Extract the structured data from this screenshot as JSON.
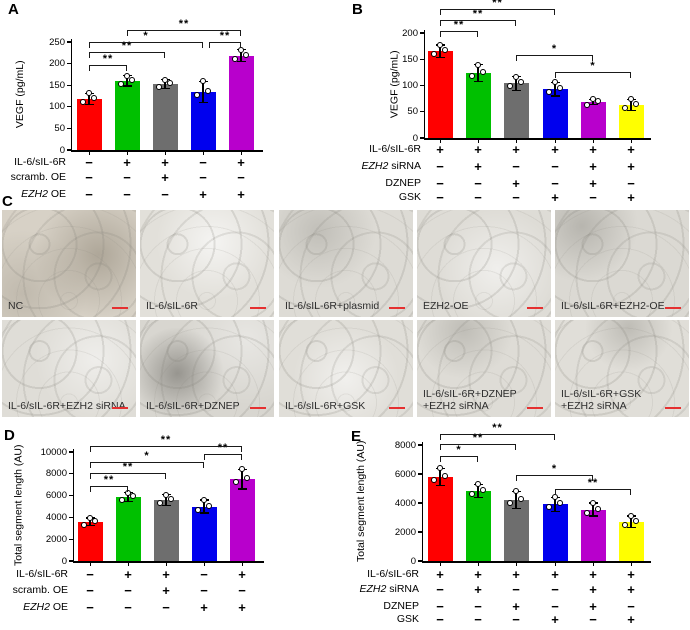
{
  "panels": {
    "A": {
      "letter": "A"
    },
    "B": {
      "letter": "B"
    },
    "C": {
      "letter": "C"
    },
    "D": {
      "letter": "D"
    },
    "E": {
      "letter": "E"
    }
  },
  "panel_c": {
    "images": [
      {
        "label": "NC"
      },
      {
        "label": "IL-6/sIL-6R"
      },
      {
        "label": "IL-6/sIL-6R+plasmid"
      },
      {
        "label": "EZH2-OE"
      },
      {
        "label": "IL-6/sIL-6R+EZH2-OE"
      },
      {
        "label": "IL-6/sIL-6R+EZH2 siRNA"
      },
      {
        "label": "IL-6/sIL-6R+DZNEP"
      },
      {
        "label": "IL-6/sIL-6R+GSK"
      },
      {
        "label": "IL-6/sIL-6R+DZNEP\n+EZH2 siRNA"
      },
      {
        "label": "IL-6/sIL-6R+GSK\n+EZH2 siRNA"
      }
    ],
    "scale_bar_color": "#e53030"
  },
  "chart_data": [
    {
      "id": "A",
      "type": "bar",
      "title": "",
      "ylabel": "VEGF (pg/mL)",
      "ylim": [
        0,
        250
      ],
      "yticks": [
        0,
        50,
        100,
        150,
        200,
        250
      ],
      "values": [
        118,
        160,
        153,
        134,
        218
      ],
      "errors": [
        13,
        12,
        10,
        25,
        14
      ],
      "colors": [
        "#ff0000",
        "#00c000",
        "#6e6e6e",
        "#0000ee",
        "#b800cc"
      ],
      "points_per_bar": 3,
      "condition_rows": [
        {
          "label": "IL-6/sIL-6R",
          "italic_prefix": "",
          "values": [
            "−",
            "+",
            "+",
            "−",
            "+"
          ]
        },
        {
          "label": "scramb. OE",
          "italic_prefix": "",
          "values": [
            "−",
            "−",
            "+",
            "−",
            "−"
          ]
        },
        {
          "label": "EZH2 OE",
          "italic_prefix": "EZH2",
          "values": [
            "−",
            "−",
            "−",
            "+",
            "+"
          ]
        }
      ],
      "significance": [
        {
          "pair": [
            0,
            1
          ],
          "label": "**"
        },
        {
          "pair": [
            0,
            2
          ],
          "label": "**"
        },
        {
          "pair": [
            0,
            3
          ],
          "label": "*"
        },
        {
          "pair": [
            3,
            4
          ],
          "label": "**"
        },
        {
          "pair": [
            1,
            4
          ],
          "label": "**"
        }
      ]
    },
    {
      "id": "B",
      "type": "bar",
      "title": "",
      "ylabel": "VEGF (pg/mL)",
      "ylim": [
        0,
        200
      ],
      "yticks": [
        0,
        50,
        100,
        150,
        200
      ],
      "values": [
        165,
        124,
        104,
        93,
        69,
        63
      ],
      "errors": [
        12,
        16,
        13,
        13,
        5,
        11
      ],
      "colors": [
        "#ff0000",
        "#00c000",
        "#6e6e6e",
        "#0000ee",
        "#b800cc",
        "#ffff00"
      ],
      "points_per_bar": 3,
      "condition_rows": [
        {
          "label": "IL-6/sIL-6R",
          "italic_prefix": "",
          "values": [
            "+",
            "+",
            "+",
            "+",
            "+",
            "+"
          ]
        },
        {
          "label": "EZH2 siRNA",
          "italic_prefix": "EZH2",
          "values": [
            "−",
            "+",
            "−",
            "−",
            "+",
            "+"
          ]
        },
        {
          "label": "DZNEP",
          "italic_prefix": "",
          "values": [
            "−",
            "−",
            "+",
            "−",
            "+",
            "−"
          ]
        },
        {
          "label": "GSK",
          "italic_prefix": "",
          "values": [
            "−",
            "−",
            "−",
            "+",
            "−",
            "+"
          ]
        }
      ],
      "significance": [
        {
          "pair": [
            0,
            1
          ],
          "label": "**"
        },
        {
          "pair": [
            0,
            2
          ],
          "label": "**"
        },
        {
          "pair": [
            0,
            3
          ],
          "label": "**"
        },
        {
          "pair": [
            2,
            4
          ],
          "label": "*"
        },
        {
          "pair": [
            3,
            5
          ],
          "label": "*"
        }
      ]
    },
    {
      "id": "D",
      "type": "bar",
      "title": "",
      "ylabel": "Total segment length (AU)",
      "ylim": [
        0,
        10000
      ],
      "yticks": [
        0,
        2000,
        4000,
        6000,
        8000,
        10000
      ],
      "values": [
        3600,
        5850,
        5600,
        5000,
        7500
      ],
      "errors": [
        350,
        400,
        500,
        600,
        900
      ],
      "colors": [
        "#ff0000",
        "#00c000",
        "#6e6e6e",
        "#0000ee",
        "#b800cc"
      ],
      "points_per_bar": 3,
      "condition_rows": [
        {
          "label": "IL-6/sIL-6R",
          "italic_prefix": "",
          "values": [
            "−",
            "+",
            "+",
            "−",
            "+"
          ]
        },
        {
          "label": "scramb. OE",
          "italic_prefix": "",
          "values": [
            "−",
            "−",
            "+",
            "−",
            "−"
          ]
        },
        {
          "label": "EZH2 OE",
          "italic_prefix": "EZH2",
          "values": [
            "−",
            "−",
            "−",
            "+",
            "+"
          ]
        }
      ],
      "significance": [
        {
          "pair": [
            0,
            1
          ],
          "label": "**"
        },
        {
          "pair": [
            0,
            2
          ],
          "label": "**"
        },
        {
          "pair": [
            0,
            3
          ],
          "label": "*"
        },
        {
          "pair": [
            3,
            4
          ],
          "label": "**"
        },
        {
          "pair": [
            0,
            4
          ],
          "label": "**"
        }
      ]
    },
    {
      "id": "E",
      "type": "bar",
      "title": "",
      "ylabel": "Total segment length (AU)",
      "ylim": [
        0,
        8000
      ],
      "yticks": [
        0,
        2000,
        4000,
        6000,
        8000
      ],
      "values": [
        5800,
        4850,
        4200,
        3900,
        3550,
        2700
      ],
      "errors": [
        600,
        450,
        600,
        500,
        450,
        400
      ],
      "colors": [
        "#ff0000",
        "#00c000",
        "#6e6e6e",
        "#0000ee",
        "#b800cc",
        "#ffff00"
      ],
      "points_per_bar": 3,
      "condition_rows": [
        {
          "label": "IL-6/sIL-6R",
          "italic_prefix": "",
          "values": [
            "+",
            "+",
            "+",
            "+",
            "+",
            "+"
          ]
        },
        {
          "label": "EZH2 siRNA",
          "italic_prefix": "EZH2",
          "values": [
            "−",
            "+",
            "−",
            "−",
            "+",
            "+"
          ]
        },
        {
          "label": "DZNEP",
          "italic_prefix": "",
          "values": [
            "−",
            "−",
            "+",
            "−",
            "+",
            "−"
          ]
        },
        {
          "label": "GSK",
          "italic_prefix": "",
          "values": [
            "−",
            "−",
            "−",
            "+",
            "−",
            "+"
          ]
        }
      ],
      "significance": [
        {
          "pair": [
            0,
            1
          ],
          "label": "*"
        },
        {
          "pair": [
            0,
            2
          ],
          "label": "**"
        },
        {
          "pair": [
            0,
            3
          ],
          "label": "**"
        },
        {
          "pair": [
            2,
            4
          ],
          "label": "*"
        },
        {
          "pair": [
            3,
            5
          ],
          "label": "**"
        }
      ]
    }
  ]
}
